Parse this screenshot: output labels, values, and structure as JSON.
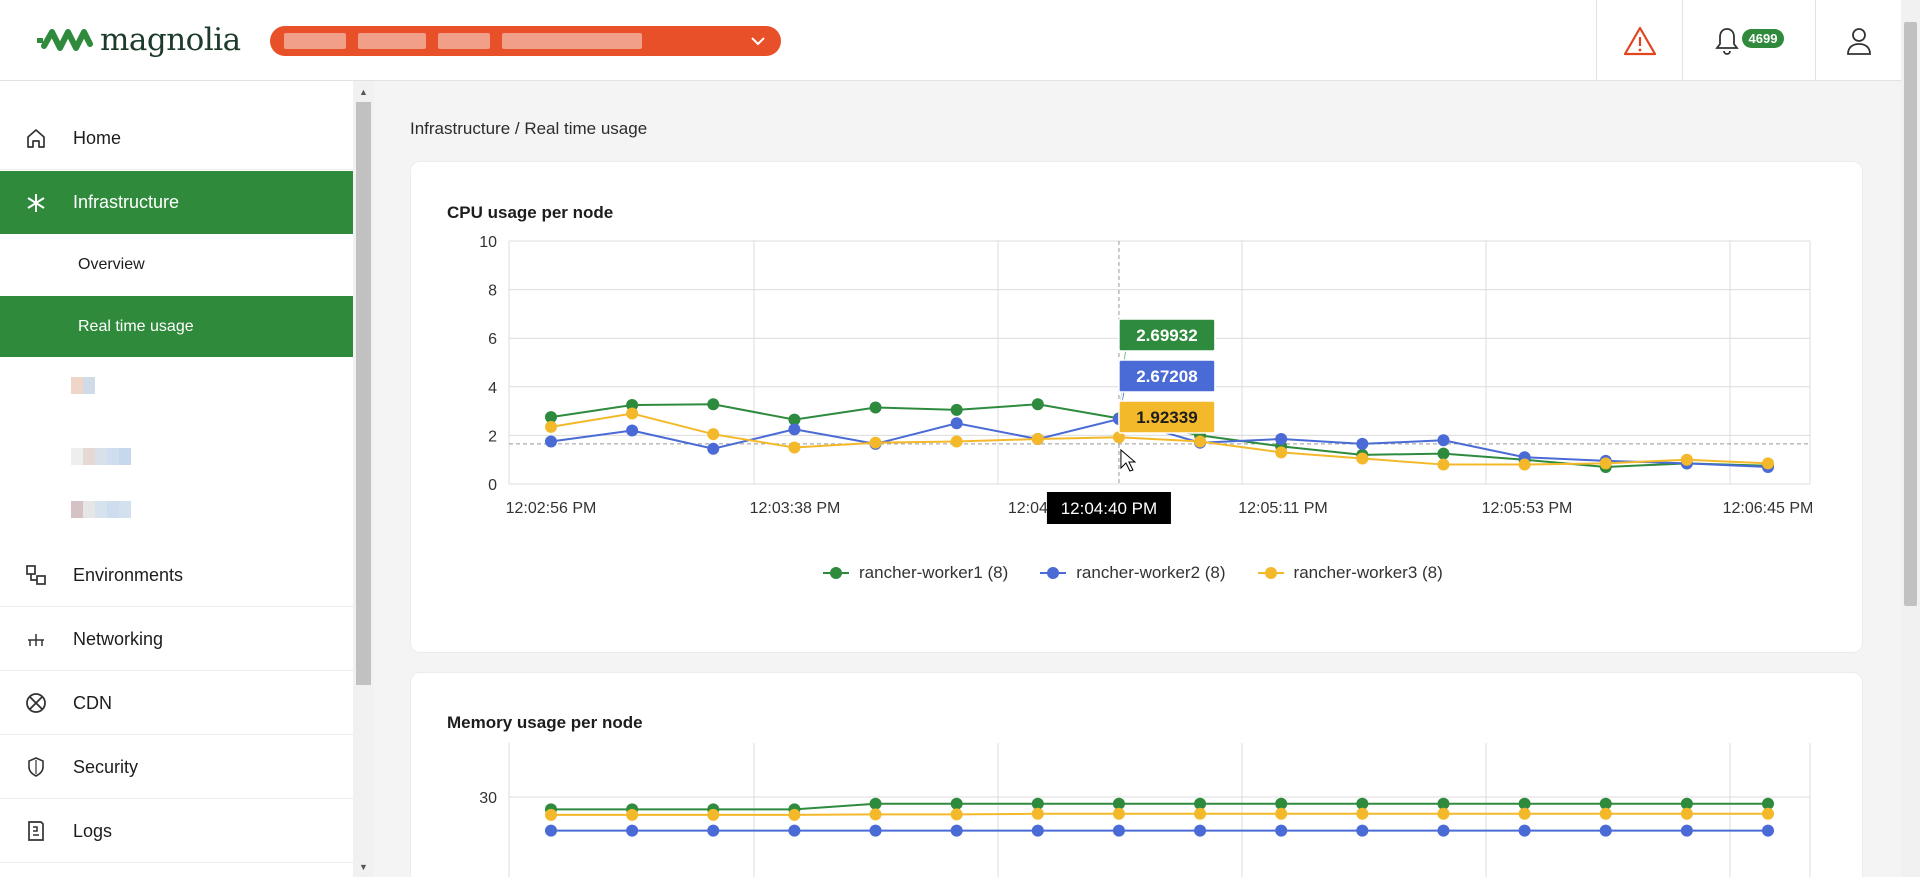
{
  "header": {
    "logo_text": "magnolia",
    "notification_count": "4699",
    "colors": {
      "environment_select": "#e8502a",
      "alert": "#e0451e",
      "badge": "#2f8a3c"
    }
  },
  "sidebar": {
    "items": [
      {
        "label": "Home",
        "icon": "home-icon"
      },
      {
        "label": "Infrastructure",
        "icon": "asterisk-icon",
        "active": true
      },
      {
        "label": "Environments",
        "icon": "environments-icon"
      },
      {
        "label": "Networking",
        "icon": "network-icon"
      },
      {
        "label": "CDN",
        "icon": "cdn-icon"
      },
      {
        "label": "Security",
        "icon": "shield-icon"
      },
      {
        "label": "Logs",
        "icon": "logs-icon"
      }
    ],
    "sub_items": [
      {
        "label": "Overview"
      },
      {
        "label": "Real time usage",
        "active": true
      }
    ],
    "accent_color": "#2f8a3c"
  },
  "main": {
    "breadcrumb": "Infrastructure / Real time usage",
    "cpu_card": {
      "title": "CPU usage per node"
    },
    "memory_card": {
      "title": "Memory usage per node"
    }
  },
  "tooltip": {
    "time": "12:04:40 PM",
    "values": [
      "2.69932",
      "2.67208",
      "1.92339"
    ]
  },
  "chart_data": [
    {
      "type": "line",
      "title": "CPU usage per node",
      "x_ticks": [
        "12:02:56 PM",
        "12:03:38 PM",
        "12:04:30",
        "12:05:11 PM",
        "12:05:53 PM",
        "12:06:45 PM"
      ],
      "y_ticks": [
        "0",
        "2",
        "4",
        "6",
        "8",
        "10"
      ],
      "ylim": [
        0,
        10
      ],
      "legend_position": "bottom",
      "series": [
        {
          "name": "rancher-worker1 (8)",
          "color": "#2e8b3e",
          "values": [
            2.75,
            3.25,
            3.28,
            2.65,
            3.15,
            3.05,
            3.28,
            2.69932,
            2.0,
            1.55,
            1.2,
            1.25,
            1.0,
            0.7,
            0.85,
            0.75
          ]
        },
        {
          "name": "rancher-worker2 (8)",
          "color": "#4a6ad6",
          "values": [
            1.75,
            2.2,
            1.45,
            2.25,
            1.65,
            2.5,
            1.85,
            2.67208,
            1.7,
            1.85,
            1.65,
            1.8,
            1.1,
            0.95,
            0.85,
            0.7
          ]
        },
        {
          "name": "rancher-worker3 (8)",
          "color": "#f4b92a",
          "values": [
            2.35,
            2.9,
            2.05,
            1.5,
            1.7,
            1.75,
            1.85,
            1.92339,
            1.75,
            1.3,
            1.05,
            0.8,
            0.8,
            0.85,
            1.0,
            0.85
          ]
        }
      ],
      "hover_index": 7,
      "crosshair_y": 1.65
    },
    {
      "type": "line",
      "title": "Memory usage per node",
      "y_ticks": [
        "30"
      ],
      "series": [
        {
          "name": "rancher-worker1 (8)",
          "color": "#2e8b3e",
          "values": [
            27.8,
            27.8,
            27.8,
            27.8,
            28.8,
            28.8,
            28.8,
            28.8,
            28.8,
            28.8,
            28.8,
            28.8,
            28.8,
            28.8,
            28.8,
            28.8
          ]
        },
        {
          "name": "rancher-worker3 (8)",
          "color": "#f4b92a",
          "values": [
            26.8,
            26.8,
            26.8,
            26.8,
            26.9,
            26.9,
            27.0,
            27.0,
            27.0,
            27.0,
            27.0,
            27.0,
            27.0,
            27.0,
            27.0,
            27.0
          ]
        },
        {
          "name": "rancher-worker2 (8)",
          "color": "#4a6ad6",
          "values": [
            24.0,
            24.0,
            24.0,
            24.0,
            24.0,
            24.0,
            24.0,
            24.0,
            24.0,
            24.0,
            24.0,
            24.0,
            24.0,
            24.0,
            24.0,
            24.0
          ]
        }
      ]
    }
  ]
}
